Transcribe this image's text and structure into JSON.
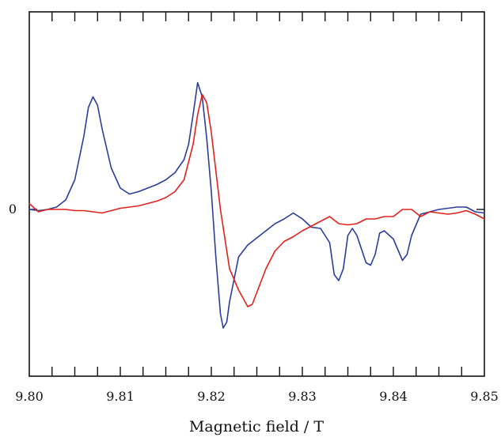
{
  "chart_data": {
    "type": "line",
    "xlabel": "Magnetic field / T",
    "ylabel": "",
    "xlim": [
      9.8,
      9.85
    ],
    "ylim": [
      -1.0,
      1.25
    ],
    "x_ticks": [
      {
        "value": 9.8,
        "label": "9.80"
      },
      {
        "value": 9.81,
        "label": "9.81"
      },
      {
        "value": 9.82,
        "label": "9.82"
      },
      {
        "value": 9.83,
        "label": "9.83"
      },
      {
        "value": 9.84,
        "label": "9.84"
      },
      {
        "value": 9.85,
        "label": "9.85"
      }
    ],
    "y_ticks": [
      {
        "value": 0,
        "label": "0"
      }
    ],
    "grid": false,
    "series": [
      {
        "color": "#2b3d9c",
        "points": [
          [
            9.8,
            0.0
          ],
          [
            9.801,
            -0.01
          ],
          [
            9.802,
            0.0
          ],
          [
            9.803,
            0.02
          ],
          [
            9.804,
            0.08
          ],
          [
            9.805,
            0.25
          ],
          [
            9.806,
            0.62
          ],
          [
            9.8065,
            0.86
          ],
          [
            9.807,
            0.95
          ],
          [
            9.8075,
            0.88
          ],
          [
            9.808,
            0.68
          ],
          [
            9.809,
            0.35
          ],
          [
            9.81,
            0.18
          ],
          [
            9.811,
            0.13
          ],
          [
            9.812,
            0.15
          ],
          [
            9.813,
            0.18
          ],
          [
            9.814,
            0.21
          ],
          [
            9.815,
            0.25
          ],
          [
            9.816,
            0.31
          ],
          [
            9.817,
            0.42
          ],
          [
            9.8175,
            0.55
          ],
          [
            9.818,
            0.8
          ],
          [
            9.8185,
            1.07
          ],
          [
            9.819,
            0.95
          ],
          [
            9.8195,
            0.6
          ],
          [
            9.82,
            0.15
          ],
          [
            9.8205,
            -0.4
          ],
          [
            9.821,
            -0.88
          ],
          [
            9.8213,
            -1.0
          ],
          [
            9.8217,
            -0.95
          ],
          [
            9.822,
            -0.78
          ],
          [
            9.823,
            -0.4
          ],
          [
            9.824,
            -0.3
          ],
          [
            9.825,
            -0.24
          ],
          [
            9.826,
            -0.18
          ],
          [
            9.827,
            -0.12
          ],
          [
            9.828,
            -0.08
          ],
          [
            9.829,
            -0.03
          ],
          [
            9.83,
            -0.08
          ],
          [
            9.831,
            -0.15
          ],
          [
            9.832,
            -0.16
          ],
          [
            9.833,
            -0.28
          ],
          [
            9.8335,
            -0.55
          ],
          [
            9.834,
            -0.6
          ],
          [
            9.8345,
            -0.5
          ],
          [
            9.835,
            -0.22
          ],
          [
            9.8355,
            -0.16
          ],
          [
            9.836,
            -0.22
          ],
          [
            9.837,
            -0.45
          ],
          [
            9.8375,
            -0.47
          ],
          [
            9.838,
            -0.38
          ],
          [
            9.8385,
            -0.2
          ],
          [
            9.839,
            -0.18
          ],
          [
            9.84,
            -0.25
          ],
          [
            9.841,
            -0.43
          ],
          [
            9.8415,
            -0.38
          ],
          [
            9.842,
            -0.22
          ],
          [
            9.843,
            -0.04
          ],
          [
            9.844,
            -0.02
          ],
          [
            9.845,
            0.0
          ],
          [
            9.846,
            0.01
          ],
          [
            9.847,
            0.02
          ],
          [
            9.848,
            0.02
          ],
          [
            9.849,
            -0.02
          ],
          [
            9.85,
            -0.03
          ]
        ]
      },
      {
        "color": "#e3211c",
        "points": [
          [
            9.8,
            0.05
          ],
          [
            9.801,
            -0.02
          ],
          [
            9.802,
            0.0
          ],
          [
            9.803,
            0.0
          ],
          [
            9.804,
            0.0
          ],
          [
            9.805,
            -0.01
          ],
          [
            9.806,
            -0.01
          ],
          [
            9.807,
            -0.02
          ],
          [
            9.808,
            -0.03
          ],
          [
            9.809,
            -0.01
          ],
          [
            9.81,
            0.01
          ],
          [
            9.811,
            0.02
          ],
          [
            9.812,
            0.03
          ],
          [
            9.813,
            0.05
          ],
          [
            9.814,
            0.07
          ],
          [
            9.815,
            0.1
          ],
          [
            9.816,
            0.15
          ],
          [
            9.817,
            0.25
          ],
          [
            9.818,
            0.55
          ],
          [
            9.8185,
            0.8
          ],
          [
            9.819,
            0.97
          ],
          [
            9.8195,
            0.9
          ],
          [
            9.82,
            0.65
          ],
          [
            9.821,
            0.0
          ],
          [
            9.822,
            -0.5
          ],
          [
            9.823,
            -0.68
          ],
          [
            9.824,
            -0.82
          ],
          [
            9.8245,
            -0.8
          ],
          [
            9.825,
            -0.7
          ],
          [
            9.826,
            -0.5
          ],
          [
            9.827,
            -0.35
          ],
          [
            9.828,
            -0.27
          ],
          [
            9.829,
            -0.23
          ],
          [
            9.83,
            -0.18
          ],
          [
            9.831,
            -0.14
          ],
          [
            9.832,
            -0.1
          ],
          [
            9.833,
            -0.06
          ],
          [
            9.834,
            -0.12
          ],
          [
            9.835,
            -0.13
          ],
          [
            9.836,
            -0.12
          ],
          [
            9.837,
            -0.08
          ],
          [
            9.838,
            -0.08
          ],
          [
            9.839,
            -0.06
          ],
          [
            9.84,
            -0.06
          ],
          [
            9.841,
            0.0
          ],
          [
            9.842,
            0.0
          ],
          [
            9.843,
            -0.06
          ],
          [
            9.844,
            -0.02
          ],
          [
            9.845,
            -0.03
          ],
          [
            9.846,
            -0.04
          ],
          [
            9.847,
            -0.03
          ],
          [
            9.848,
            -0.01
          ],
          [
            9.849,
            -0.04
          ],
          [
            9.85,
            -0.08
          ]
        ]
      }
    ]
  }
}
